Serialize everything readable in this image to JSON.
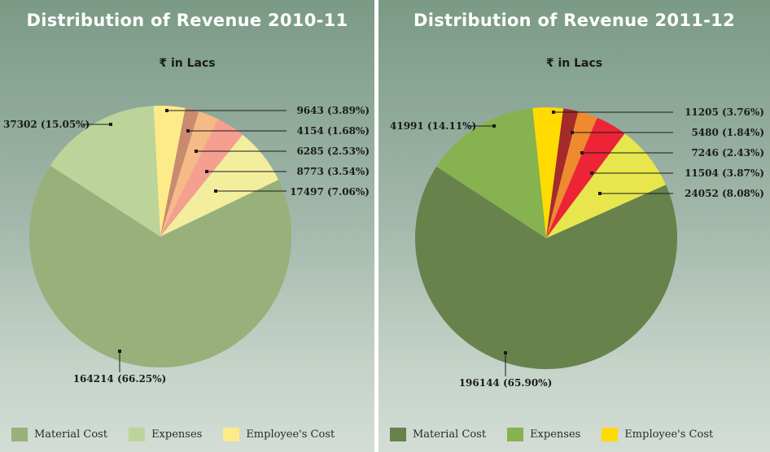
{
  "chart_data": [
    {
      "type": "pie",
      "title": "Distribution of Revenue 2010-11",
      "unit": "₹ in Lacs",
      "slices": [
        {
          "label": "164214 (66.25%)",
          "value": 164214,
          "percent": 66.25,
          "color": "#98b07a"
        },
        {
          "label": "37302 (15.05%)",
          "value": 37302,
          "percent": 15.05,
          "color": "#bcd49a"
        },
        {
          "label": "9643 (3.89%)",
          "value": 9643,
          "percent": 3.89,
          "color": "#fdeb8a"
        },
        {
          "label": "4154 (1.68%)",
          "value": 4154,
          "percent": 1.68,
          "color": "#c98a70"
        },
        {
          "label": "6285 (2.53%)",
          "value": 6285,
          "percent": 2.53,
          "color": "#f5ba85"
        },
        {
          "label": "8773 (3.54%)",
          "value": 8773,
          "percent": 3.54,
          "color": "#f59f90"
        },
        {
          "label": "17497 (7.06%)",
          "value": 17497,
          "percent": 7.06,
          "color": "#f2ee9e"
        }
      ],
      "legend": [
        {
          "label": "Material Cost",
          "color": "#98b07a"
        },
        {
          "label": "Expenses",
          "color": "#bcd49a"
        },
        {
          "label": "Employee's Cost",
          "color": "#fdeb8a"
        }
      ]
    },
    {
      "type": "pie",
      "title": "Distribution of Revenue 2011-12",
      "unit": "₹ in Lacs",
      "slices": [
        {
          "label": "196144 (65.90%)",
          "value": 196144,
          "percent": 65.9,
          "color": "#67824b"
        },
        {
          "label": "41991 (14.11%)",
          "value": 41991,
          "percent": 14.11,
          "color": "#86b24f"
        },
        {
          "label": "11205 (3.76%)",
          "value": 11205,
          "percent": 3.76,
          "color": "#ffdb00"
        },
        {
          "label": "5480 (1.84%)",
          "value": 5480,
          "percent": 1.84,
          "color": "#a52a2a"
        },
        {
          "label": "7246 (2.43%)",
          "value": 7246,
          "percent": 2.43,
          "color": "#ef8a2e"
        },
        {
          "label": "11504 (3.87%)",
          "value": 11504,
          "percent": 3.87,
          "color": "#ec2436"
        },
        {
          "label": "24052 (8.08%)",
          "value": 24052,
          "percent": 8.08,
          "color": "#e7e64c"
        }
      ],
      "legend": [
        {
          "label": "Material Cost",
          "color": "#67824b"
        },
        {
          "label": "Expenses",
          "color": "#86b24f"
        },
        {
          "label": "Employee's Cost",
          "color": "#ffdb00"
        }
      ]
    }
  ]
}
